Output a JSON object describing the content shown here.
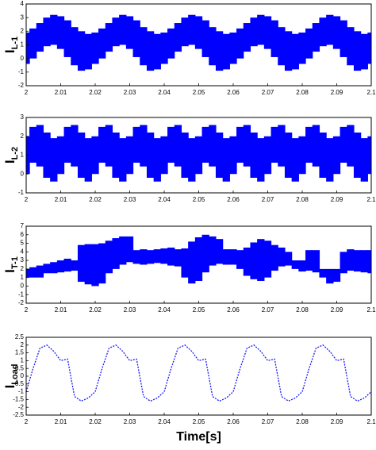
{
  "chart_data": [
    {
      "type": "band",
      "ylabel": "I",
      "ylabel_sub": "L-1",
      "x": [
        2,
        2.002,
        2.004,
        2.006,
        2.008,
        2.01,
        2.012,
        2.014,
        2.016,
        2.018,
        2.02,
        2.022,
        2.024,
        2.026,
        2.028,
        2.03,
        2.032,
        2.034,
        2.036,
        2.038,
        2.04,
        2.042,
        2.044,
        2.046,
        2.048,
        2.05,
        2.052,
        2.054,
        2.056,
        2.058,
        2.06,
        2.062,
        2.064,
        2.066,
        2.068,
        2.07,
        2.072,
        2.074,
        2.076,
        2.078,
        2.08,
        2.082,
        2.084,
        2.086,
        2.088,
        2.09,
        2.092,
        2.094,
        2.096,
        2.098,
        2.1
      ],
      "series": [
        {
          "color": "#0000ff",
          "values": [
            1.9,
            2.2,
            2.6,
            3.0,
            3.2,
            3.1,
            2.8,
            2.3,
            2.0,
            1.8,
            1.9,
            2.2,
            2.6,
            3.0,
            3.2,
            3.1,
            2.8,
            2.3,
            2.0,
            1.8,
            1.9,
            2.2,
            2.6,
            3.0,
            3.2,
            3.1,
            2.8,
            2.3,
            2.0,
            1.8,
            1.9,
            2.2,
            2.6,
            3.0,
            3.2,
            3.1,
            2.8,
            2.3,
            2.0,
            1.8,
            1.9,
            2.2,
            2.6,
            3.0,
            3.2,
            3.1,
            2.8,
            2.3,
            2.0,
            1.8,
            1.9
          ]
        },
        {
          "color": "#0000ff",
          "values": [
            -0.4,
            0.0,
            0.5,
            0.9,
            1.0,
            0.7,
            0.1,
            -0.5,
            -0.9,
            -0.8,
            -0.4,
            0.0,
            0.5,
            0.9,
            1.0,
            0.7,
            0.1,
            -0.5,
            -0.9,
            -0.8,
            -0.4,
            0.0,
            0.5,
            0.9,
            1.0,
            0.7,
            0.1,
            -0.5,
            -0.9,
            -0.8,
            -0.4,
            0.0,
            0.5,
            0.9,
            1.0,
            0.7,
            0.1,
            -0.5,
            -0.9,
            -0.8,
            -0.4,
            0.0,
            0.5,
            0.9,
            1.0,
            0.7,
            0.1,
            -0.5,
            -0.9,
            -0.8,
            -0.4
          ]
        }
      ],
      "xlim": [
        2,
        2.1
      ],
      "xticks": [
        2,
        2.01,
        2.02,
        2.03,
        2.04,
        2.05,
        2.06,
        2.07,
        2.08,
        2.09,
        2.1
      ],
      "ylim": [
        -2,
        4
      ],
      "yticks": [
        -2,
        -1,
        0,
        1,
        2,
        3,
        4
      ]
    },
    {
      "type": "band",
      "ylabel": "I",
      "ylabel_sub": "L-2",
      "x": [
        2,
        2.002,
        2.004,
        2.006,
        2.008,
        2.01,
        2.012,
        2.014,
        2.016,
        2.018,
        2.02,
        2.022,
        2.024,
        2.026,
        2.028,
        2.03,
        2.032,
        2.034,
        2.036,
        2.038,
        2.04,
        2.042,
        2.044,
        2.046,
        2.048,
        2.05,
        2.052,
        2.054,
        2.056,
        2.058,
        2.06,
        2.062,
        2.064,
        2.066,
        2.068,
        2.07,
        2.072,
        2.074,
        2.076,
        2.078,
        2.08,
        2.082,
        2.084,
        2.086,
        2.088,
        2.09,
        2.092,
        2.094,
        2.096,
        2.098,
        2.1
      ],
      "series": [
        {
          "color": "#0000ff",
          "values": [
            2.0,
            2.5,
            2.6,
            2.2,
            1.9,
            2.0,
            2.5,
            2.6,
            2.2,
            1.9,
            2.0,
            2.5,
            2.6,
            2.2,
            1.9,
            2.0,
            2.5,
            2.6,
            2.2,
            1.9,
            2.0,
            2.5,
            2.6,
            2.2,
            1.9,
            2.0,
            2.5,
            2.6,
            2.2,
            1.9,
            2.0,
            2.5,
            2.6,
            2.2,
            1.9,
            2.0,
            2.5,
            2.6,
            2.2,
            1.9,
            2.0,
            2.5,
            2.6,
            2.2,
            1.9,
            2.0,
            2.5,
            2.6,
            2.2,
            1.9,
            2.0
          ]
        },
        {
          "color": "#0000ff",
          "values": [
            0.0,
            0.6,
            0.4,
            -0.2,
            -0.4,
            0.0,
            0.6,
            0.4,
            -0.2,
            -0.4,
            0.0,
            0.6,
            0.4,
            -0.2,
            -0.4,
            0.0,
            0.6,
            0.4,
            -0.2,
            -0.4,
            0.0,
            0.6,
            0.4,
            -0.2,
            -0.4,
            0.0,
            0.6,
            0.4,
            -0.2,
            -0.4,
            0.0,
            0.6,
            0.4,
            -0.2,
            -0.4,
            0.0,
            0.6,
            0.4,
            -0.2,
            -0.4,
            0.0,
            0.6,
            0.4,
            -0.2,
            -0.4,
            0.0,
            0.6,
            0.4,
            -0.2,
            -0.4,
            0.0
          ]
        }
      ],
      "xlim": [
        2,
        2.1
      ],
      "xticks": [
        2,
        2.01,
        2.02,
        2.03,
        2.04,
        2.05,
        2.06,
        2.07,
        2.08,
        2.09,
        2.1
      ],
      "ylim": [
        -1,
        3
      ],
      "yticks": [
        -1,
        0,
        1,
        2,
        3
      ]
    },
    {
      "type": "band",
      "ylabel": "I",
      "ylabel_sub": "T-1",
      "x": [
        2,
        2.002,
        2.004,
        2.006,
        2.008,
        2.01,
        2.012,
        2.014,
        2.016,
        2.018,
        2.02,
        2.022,
        2.024,
        2.026,
        2.028,
        2.03,
        2.032,
        2.034,
        2.036,
        2.038,
        2.04,
        2.042,
        2.044,
        2.046,
        2.048,
        2.05,
        2.052,
        2.054,
        2.056,
        2.058,
        2.06,
        2.062,
        2.064,
        2.066,
        2.068,
        2.07,
        2.072,
        2.074,
        2.076,
        2.078,
        2.08,
        2.082,
        2.084,
        2.086,
        2.088,
        2.09,
        2.092,
        2.094,
        2.096,
        2.098,
        2.1
      ],
      "series": [
        {
          "color": "#0000ff",
          "values": [
            2.0,
            2.2,
            2.4,
            2.6,
            2.8,
            3.0,
            3.2,
            3.0,
            4.8,
            4.9,
            4.9,
            5.0,
            5.3,
            5.6,
            5.8,
            5.8,
            4.2,
            4.3,
            4.2,
            4.3,
            4.4,
            4.5,
            4.3,
            4.4,
            5.2,
            5.7,
            6.0,
            5.8,
            5.5,
            4.3,
            4.3,
            4.2,
            4.5,
            5.1,
            5.5,
            5.3,
            4.8,
            4.5,
            4.0,
            3.0,
            3.0,
            4.2,
            4.2,
            2.0,
            2.0,
            2.0,
            4.0,
            4.3,
            4.2,
            4.2,
            4.2
          ]
        },
        {
          "color": "#0000ff",
          "values": [
            1.0,
            1.0,
            1.0,
            1.5,
            1.5,
            1.6,
            1.7,
            1.8,
            0.5,
            0.2,
            0.0,
            0.3,
            1.5,
            2.0,
            2.5,
            2.8,
            2.6,
            2.5,
            2.6,
            2.7,
            2.6,
            2.4,
            2.3,
            1.0,
            0.3,
            0.6,
            1.6,
            2.4,
            2.6,
            2.5,
            2.5,
            2.0,
            1.2,
            0.8,
            0.6,
            1.0,
            1.8,
            2.3,
            2.4,
            2.0,
            1.7,
            1.8,
            1.6,
            1.0,
            0.3,
            0.5,
            1.5,
            1.8,
            1.7,
            1.6,
            1.5
          ]
        }
      ],
      "xlim": [
        2,
        2.1
      ],
      "xticks": [
        2,
        2.01,
        2.02,
        2.03,
        2.04,
        2.05,
        2.06,
        2.07,
        2.08,
        2.09,
        2.1
      ],
      "ylim": [
        -2,
        7
      ],
      "yticks": [
        -2,
        -1,
        0,
        1,
        2,
        3,
        4,
        5,
        6,
        7
      ]
    },
    {
      "type": "line",
      "ylabel": "I",
      "ylabel_sub": "Load",
      "xlabel": "Time[s]",
      "line_style": "dotted",
      "x": [
        2,
        2.002,
        2.004,
        2.006,
        2.008,
        2.01,
        2.012,
        2.014,
        2.016,
        2.018,
        2.02,
        2.022,
        2.024,
        2.026,
        2.028,
        2.03,
        2.032,
        2.034,
        2.036,
        2.038,
        2.04,
        2.042,
        2.044,
        2.046,
        2.048,
        2.05,
        2.052,
        2.054,
        2.056,
        2.058,
        2.06,
        2.062,
        2.064,
        2.066,
        2.068,
        2.07,
        2.072,
        2.074,
        2.076,
        2.078,
        2.08,
        2.082,
        2.084,
        2.086,
        2.088,
        2.09,
        2.092,
        2.094,
        2.096,
        2.098,
        2.1
      ],
      "series": [
        {
          "color": "#1a1aff",
          "values": [
            -1.0,
            0.5,
            1.8,
            2.0,
            1.6,
            1.0,
            1.1,
            -1.3,
            -1.6,
            -1.4,
            -1.0,
            0.5,
            1.8,
            2.0,
            1.6,
            1.0,
            1.1,
            -1.3,
            -1.6,
            -1.4,
            -1.0,
            0.5,
            1.8,
            2.0,
            1.6,
            1.0,
            1.1,
            -1.3,
            -1.6,
            -1.4,
            -1.0,
            0.5,
            1.8,
            2.0,
            1.6,
            1.0,
            1.1,
            -1.3,
            -1.6,
            -1.4,
            -1.0,
            0.5,
            1.8,
            2.0,
            1.6,
            1.0,
            1.1,
            -1.3,
            -1.6,
            -1.4,
            -1.0
          ]
        }
      ],
      "xlim": [
        2,
        2.1
      ],
      "xticks": [
        2,
        2.01,
        2.02,
        2.03,
        2.04,
        2.05,
        2.06,
        2.07,
        2.08,
        2.09,
        2.1
      ],
      "ylim": [
        -2.5,
        2.5
      ],
      "yticks": [
        -2.5,
        -2,
        -1.5,
        -1,
        -0.5,
        0,
        0.5,
        1,
        1.5,
        2,
        2.5
      ]
    }
  ]
}
